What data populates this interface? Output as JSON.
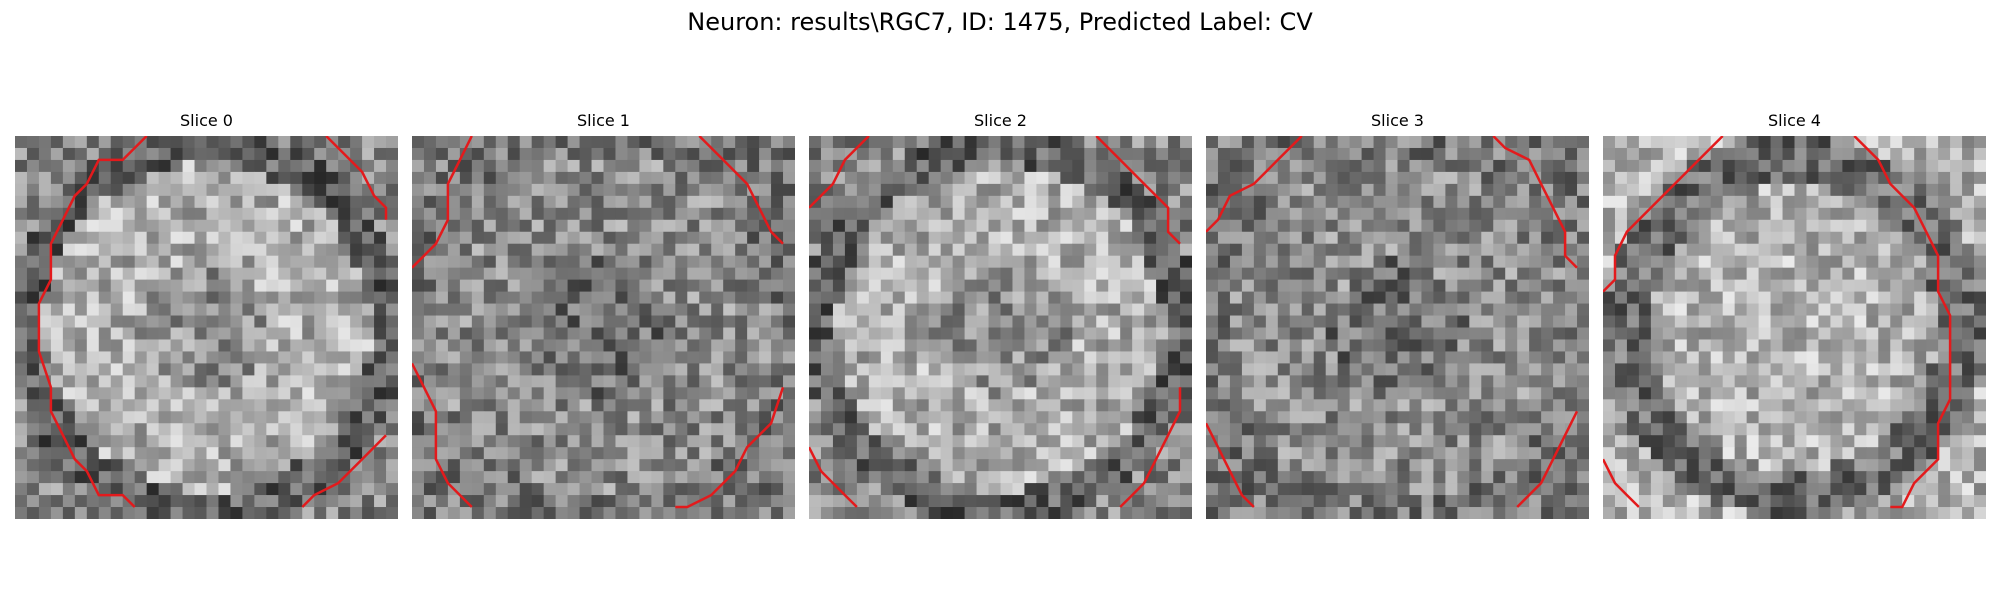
{
  "figure": {
    "title": "Neuron: results\\RGC7, ID: 1475, Predicted Label: CV"
  },
  "panels": [
    {
      "title": "Slice 0",
      "seed": 11,
      "ring": "light",
      "dark_center": true
    },
    {
      "title": "Slice 1",
      "seed": 23,
      "ring": "noise",
      "dark_center": true
    },
    {
      "title": "Slice 2",
      "seed": 37,
      "ring": "light",
      "dark_center": true
    },
    {
      "title": "Slice 3",
      "seed": 41,
      "ring": "noise",
      "dark_center": true
    },
    {
      "title": "Slice 4",
      "seed": 59,
      "ring": "dark-ring",
      "dark_center": false
    }
  ],
  "colors": {
    "contour": "#e31a1c"
  }
}
